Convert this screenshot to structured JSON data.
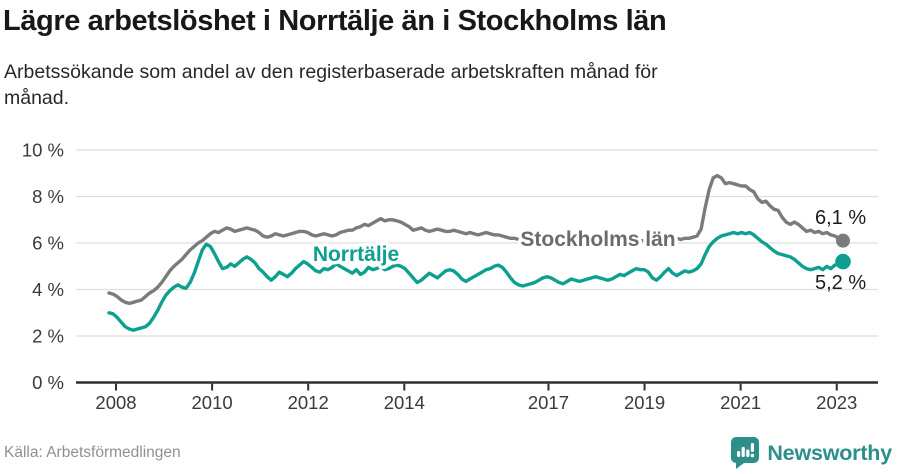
{
  "header": {
    "title": "Lägre arbetslöshet i Norrtälje än i Stockholms län",
    "subtitle_line1": "Arbetssökande som andel av den registerbaserade arbetskraften månad för",
    "subtitle_line2": "månad."
  },
  "chart_data": {
    "type": "line",
    "title": "Lägre arbetslöshet i Norrtälje än i Stockholms län",
    "subtitle": "Arbetssökande som andel av den registerbaserade arbetskraften månad för månad.",
    "frequency": "monthly",
    "x_start": "2008-01",
    "x_end": "2023-02",
    "ylim": [
      0,
      10
    ],
    "grid": "horizontal",
    "legend_position": "inline-labels",
    "y_ticks": [
      {
        "value": 10,
        "label": "10 %"
      },
      {
        "value": 8,
        "label": "8 %"
      },
      {
        "value": 6,
        "label": "6 %"
      },
      {
        "value": 4,
        "label": "4 %"
      },
      {
        "value": 2,
        "label": "2 %"
      },
      {
        "value": 0,
        "label": "0 %"
      }
    ],
    "x_ticks": [
      {
        "year": 2008,
        "label": "2008"
      },
      {
        "year": 2010,
        "label": "2010"
      },
      {
        "year": 2012,
        "label": "2012"
      },
      {
        "year": 2014,
        "label": "2014"
      },
      {
        "year": 2017,
        "label": "2017"
      },
      {
        "year": 2019,
        "label": "2019"
      },
      {
        "year": 2021,
        "label": "2021"
      },
      {
        "year": 2023,
        "label": "2023"
      }
    ],
    "series": [
      {
        "name": "Stockholms län",
        "color": "#7b7b7b",
        "end_label": "6,1 %",
        "end_value": 6.1,
        "values": [
          3.85,
          3.8,
          3.7,
          3.55,
          3.45,
          3.4,
          3.45,
          3.5,
          3.55,
          3.7,
          3.85,
          3.95,
          4.1,
          4.3,
          4.55,
          4.8,
          5.0,
          5.15,
          5.3,
          5.5,
          5.7,
          5.85,
          6.0,
          6.1,
          6.25,
          6.4,
          6.5,
          6.45,
          6.55,
          6.65,
          6.6,
          6.5,
          6.55,
          6.6,
          6.65,
          6.6,
          6.55,
          6.45,
          6.3,
          6.25,
          6.3,
          6.4,
          6.35,
          6.3,
          6.35,
          6.4,
          6.45,
          6.5,
          6.5,
          6.45,
          6.35,
          6.3,
          6.35,
          6.4,
          6.35,
          6.3,
          6.35,
          6.45,
          6.5,
          6.55,
          6.55,
          6.65,
          6.7,
          6.8,
          6.75,
          6.85,
          6.95,
          7.05,
          6.95,
          7.0,
          7.0,
          6.95,
          6.9,
          6.8,
          6.7,
          6.55,
          6.6,
          6.65,
          6.55,
          6.5,
          6.55,
          6.6,
          6.55,
          6.5,
          6.5,
          6.55,
          6.5,
          6.45,
          6.4,
          6.45,
          6.4,
          6.35,
          6.4,
          6.45,
          6.4,
          6.35,
          6.35,
          6.3,
          6.25,
          6.2,
          6.2,
          6.15,
          6.1,
          6.1,
          6.15,
          6.1,
          6.1,
          6.05,
          6.05,
          6.0,
          6.0,
          5.95,
          5.95,
          6.0,
          6.0,
          6.05,
          6.05,
          6.0,
          6.0,
          6.05,
          6.05,
          6.0,
          6.0,
          5.95,
          5.95,
          6.0,
          6.05,
          6.05,
          6.1,
          6.1,
          6.1,
          6.1,
          6.1,
          6.1,
          6.15,
          6.1,
          6.1,
          6.15,
          6.15,
          6.2,
          6.2,
          6.15,
          6.2,
          6.2,
          6.25,
          6.3,
          6.6,
          7.5,
          8.3,
          8.8,
          8.9,
          8.8,
          8.55,
          8.6,
          8.55,
          8.5,
          8.45,
          8.45,
          8.3,
          8.2,
          7.9,
          7.75,
          7.8,
          7.6,
          7.45,
          7.4,
          7.1,
          6.9,
          6.8,
          6.9,
          6.8,
          6.65,
          6.5,
          6.55,
          6.45,
          6.5,
          6.4,
          6.45,
          6.35,
          6.3,
          6.2,
          6.1
        ]
      },
      {
        "name": "Norrtälje",
        "color": "#0da091",
        "end_label": "5,2 %",
        "end_value": 5.2,
        "values": [
          3.0,
          2.95,
          2.8,
          2.6,
          2.4,
          2.3,
          2.25,
          2.3,
          2.35,
          2.4,
          2.55,
          2.8,
          3.1,
          3.45,
          3.75,
          3.95,
          4.1,
          4.2,
          4.1,
          4.05,
          4.3,
          4.7,
          5.2,
          5.7,
          5.95,
          5.85,
          5.55,
          5.2,
          4.9,
          4.95,
          5.1,
          5.0,
          5.15,
          5.3,
          5.4,
          5.3,
          5.15,
          4.9,
          4.75,
          4.55,
          4.4,
          4.55,
          4.75,
          4.65,
          4.55,
          4.7,
          4.9,
          5.05,
          5.2,
          5.1,
          4.95,
          4.8,
          4.75,
          4.9,
          4.85,
          4.95,
          5.1,
          5.0,
          4.9,
          4.8,
          4.7,
          4.85,
          4.65,
          4.75,
          4.95,
          4.85,
          4.9,
          5.0,
          4.85,
          4.9,
          5.0,
          5.05,
          5.0,
          4.9,
          4.7,
          4.5,
          4.3,
          4.4,
          4.55,
          4.7,
          4.6,
          4.5,
          4.65,
          4.8,
          4.85,
          4.8,
          4.65,
          4.45,
          4.35,
          4.45,
          4.55,
          4.65,
          4.75,
          4.85,
          4.9,
          5.0,
          5.05,
          4.95,
          4.75,
          4.5,
          4.3,
          4.2,
          4.15,
          4.2,
          4.25,
          4.3,
          4.4,
          4.5,
          4.55,
          4.5,
          4.4,
          4.3,
          4.25,
          4.35,
          4.45,
          4.4,
          4.35,
          4.4,
          4.45,
          4.5,
          4.55,
          4.5,
          4.45,
          4.4,
          4.45,
          4.55,
          4.65,
          4.6,
          4.7,
          4.8,
          4.9,
          4.85,
          4.85,
          4.75,
          4.5,
          4.4,
          4.55,
          4.75,
          4.9,
          4.7,
          4.6,
          4.7,
          4.8,
          4.75,
          4.8,
          4.9,
          5.1,
          5.5,
          5.85,
          6.05,
          6.2,
          6.3,
          6.35,
          6.4,
          6.45,
          6.4,
          6.45,
          6.4,
          6.45,
          6.35,
          6.2,
          6.05,
          5.95,
          5.8,
          5.65,
          5.55,
          5.5,
          5.45,
          5.4,
          5.3,
          5.15,
          5.0,
          4.9,
          4.85,
          4.9,
          4.95,
          4.85,
          5.0,
          4.9,
          5.05,
          5.1,
          5.2
        ]
      }
    ]
  },
  "footer": {
    "source": "Källa: Arbetsförmedlingen",
    "logo_text": "Newsworthy",
    "logo_color": "#2e8f8a"
  }
}
